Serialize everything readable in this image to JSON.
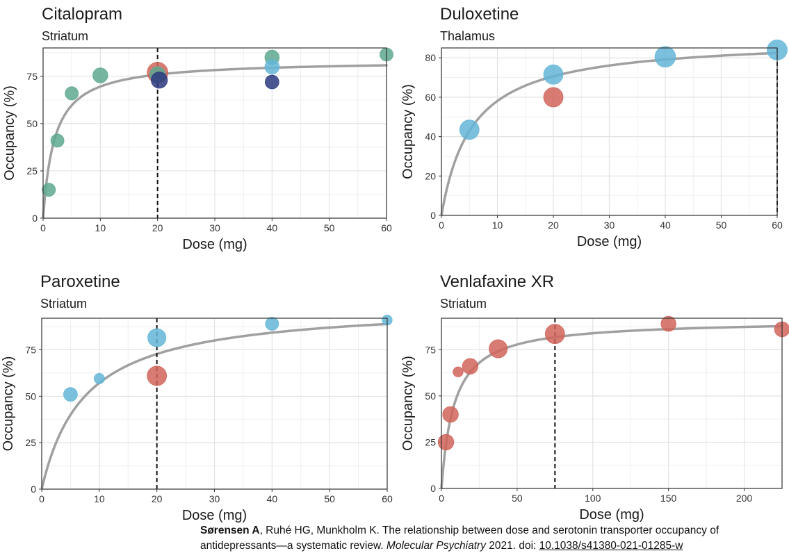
{
  "colors": {
    "teal": "#5ea88e",
    "navy": "#2b3a80",
    "lightblue": "#64b6d8",
    "red": "#d0645a",
    "curve": "#a0a0a0",
    "grid": "#e2e2e2",
    "border": "#333333"
  },
  "chart_data": [
    {
      "type": "scatter",
      "title": "Citalopram",
      "subtitle": "Striatum",
      "xlabel": "Dose (mg)",
      "ylabel": "Occupancy (%)",
      "xlim": [
        0,
        60
      ],
      "ylim": [
        0,
        90
      ],
      "xticks": [
        0,
        10,
        20,
        30,
        40,
        50,
        60
      ],
      "yticks": [
        0,
        25,
        50,
        75
      ],
      "reference_dose": 20,
      "fit": {
        "emax": 83.5,
        "ed50": 2.0,
        "x_end": 60
      },
      "points": [
        {
          "x": 1,
          "y": 15,
          "size": 1,
          "color": "teal"
        },
        {
          "x": 2.5,
          "y": 41,
          "size": 1,
          "color": "teal"
        },
        {
          "x": 5,
          "y": 66,
          "size": 1,
          "color": "teal"
        },
        {
          "x": 10,
          "y": 75.5,
          "size": 1.3,
          "color": "teal"
        },
        {
          "x": 20,
          "y": 77,
          "size": 2.2,
          "color": "red"
        },
        {
          "x": 20,
          "y": 76,
          "size": 1.4,
          "color": "teal"
        },
        {
          "x": 20.3,
          "y": 73,
          "size": 1.5,
          "color": "navy"
        },
        {
          "x": 40,
          "y": 85,
          "size": 1.2,
          "color": "teal"
        },
        {
          "x": 40,
          "y": 80,
          "size": 1.2,
          "color": "lightblue"
        },
        {
          "x": 40,
          "y": 72,
          "size": 1.1,
          "color": "navy"
        },
        {
          "x": 60,
          "y": 86.5,
          "size": 1,
          "color": "teal"
        }
      ]
    },
    {
      "type": "scatter",
      "title": "Duloxetine",
      "subtitle": "Thalamus",
      "xlabel": "Dose (mg)",
      "ylabel": "Occupancy (%)",
      "xlim": [
        0,
        60
      ],
      "ylim": [
        0,
        85
      ],
      "xticks": [
        0,
        10,
        20,
        30,
        40,
        50,
        60
      ],
      "yticks": [
        0,
        20,
        40,
        60,
        80
      ],
      "reference_dose": 60,
      "fit": {
        "emax": 90,
        "ed50": 5.5,
        "x_end": 60
      },
      "points": [
        {
          "x": 5,
          "y": 43.5,
          "size": 2,
          "color": "lightblue"
        },
        {
          "x": 20,
          "y": 71.5,
          "size": 2,
          "color": "lightblue"
        },
        {
          "x": 20,
          "y": 60,
          "size": 2,
          "color": "red"
        },
        {
          "x": 40,
          "y": 80.5,
          "size": 2.2,
          "color": "lightblue"
        },
        {
          "x": 60,
          "y": 84,
          "size": 2.1,
          "color": "lightblue"
        }
      ]
    },
    {
      "type": "scatter",
      "title": "Paroxetine",
      "subtitle": "Striatum",
      "xlabel": "Dose (mg)",
      "ylabel": "Occupancy (%)",
      "xlim": [
        0,
        60
      ],
      "ylim": [
        0,
        92
      ],
      "xticks": [
        0,
        10,
        20,
        30,
        40,
        50,
        60
      ],
      "yticks": [
        0,
        25,
        50,
        75
      ],
      "reference_dose": 20,
      "fit": {
        "emax": 100,
        "ed50": 7.5,
        "x_end": 60
      },
      "points": [
        {
          "x": 5,
          "y": 51,
          "size": 1.1,
          "color": "lightblue"
        },
        {
          "x": 10,
          "y": 59.5,
          "size": 0.55,
          "color": "lightblue"
        },
        {
          "x": 20,
          "y": 81.5,
          "size": 1.8,
          "color": "lightblue"
        },
        {
          "x": 20,
          "y": 61,
          "size": 2,
          "color": "red"
        },
        {
          "x": 40,
          "y": 89,
          "size": 1,
          "color": "lightblue"
        },
        {
          "x": 60,
          "y": 91,
          "size": 0.5,
          "color": "lightblue"
        }
      ]
    },
    {
      "type": "scatter",
      "title": "Venlafaxine XR",
      "subtitle": "Striatum",
      "xlabel": "Dose (mg)",
      "ylabel": "Occupancy (%)",
      "xlim": [
        0,
        225
      ],
      "ylim": [
        0,
        92
      ],
      "xticks": [
        0,
        50,
        100,
        150,
        200
      ],
      "yticks": [
        0,
        25,
        50,
        75
      ],
      "reference_dose": 75,
      "fit": {
        "emax": 91,
        "ed50": 8.5,
        "x_end": 225
      },
      "points": [
        {
          "x": 3,
          "y": 25,
          "size": 1.4,
          "color": "red"
        },
        {
          "x": 6,
          "y": 40,
          "size": 1.4,
          "color": "red"
        },
        {
          "x": 11,
          "y": 63,
          "size": 0.5,
          "color": "red"
        },
        {
          "x": 19,
          "y": 66,
          "size": 1.4,
          "color": "red"
        },
        {
          "x": 37.5,
          "y": 75.5,
          "size": 1.8,
          "color": "red"
        },
        {
          "x": 75,
          "y": 83.5,
          "size": 2,
          "color": "red"
        },
        {
          "x": 150,
          "y": 89,
          "size": 1.3,
          "color": "red"
        },
        {
          "x": 225,
          "y": 86,
          "size": 1.3,
          "color": "red"
        }
      ]
    }
  ],
  "citation": {
    "authors_bold": "Sørensen A",
    "authors_rest": ", Ruhé HG, Munkholm K. The relationship between dose and serotonin transporter occupancy of antidepressants—a systematic review. ",
    "journal": "Molecular Psychiatry",
    "year_text": " 2021. doi: ",
    "doi": "10.1038/s41380-021-01285-w"
  }
}
